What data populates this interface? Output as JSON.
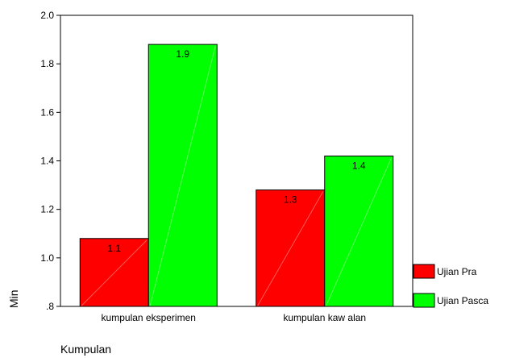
{
  "chart_data": {
    "type": "bar",
    "categories": [
      "kumpulan eksperimen",
      "kumpulan kaw alan"
    ],
    "series": [
      {
        "name": "Ujian Pra",
        "values": [
          1.08,
          1.28
        ],
        "labels": [
          "1.1",
          "1.3"
        ],
        "color": "#ff0000"
      },
      {
        "name": "Ujian Pasca",
        "values": [
          1.88,
          1.42
        ],
        "labels": [
          "1.9",
          "1.4"
        ],
        "color": "#00ff00"
      }
    ],
    "title": "",
    "xlabel": "Kumpulan",
    "ylabel": "Min",
    "ylim": [
      0.8,
      2.0
    ],
    "yticks": [
      0.8,
      1.0,
      1.2,
      1.4,
      1.6,
      1.8,
      2.0
    ],
    "ytick_labels": [
      ".8",
      "1.0",
      "1.2",
      "1.4",
      "1.6",
      "1.8",
      "2.0"
    ],
    "grid": false,
    "legend_position": "right-bottom"
  }
}
